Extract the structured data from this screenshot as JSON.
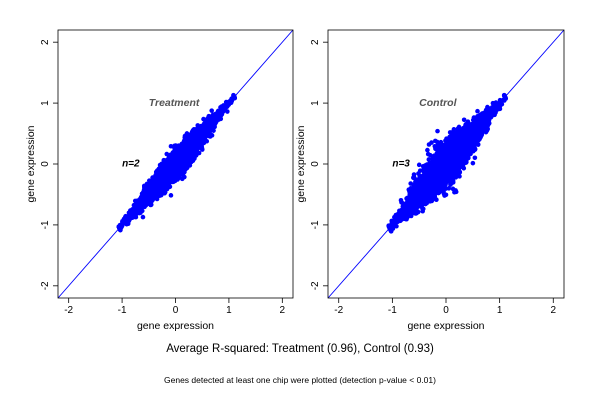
{
  "chart_data": [
    {
      "type": "scatter",
      "title": "Treatment",
      "annotation": "n=2",
      "xlabel": "gene expression",
      "ylabel": "gene expression",
      "xlim": [
        -2.2,
        2.2
      ],
      "ylim": [
        -2.2,
        2.2
      ],
      "xticks": [
        -2,
        -1,
        0,
        1,
        2
      ],
      "yticks": [
        -2,
        -1,
        0,
        1,
        2
      ],
      "reference_line": {
        "slope": 1,
        "intercept": 0,
        "color": "#0000ff"
      },
      "point_color": "#0000ff",
      "cloud": {
        "x_range": [
          -1.05,
          1.1
        ],
        "center": [
          0.0,
          0.0
        ],
        "spread_along": 0.45,
        "spread_across": 0.09
      },
      "r_squared": 0.96,
      "grid": false
    },
    {
      "type": "scatter",
      "title": "Control",
      "annotation": "n=3",
      "xlabel": "gene expression",
      "ylabel": "gene expression",
      "xlim": [
        -2.2,
        2.2
      ],
      "ylim": [
        -2.2,
        2.2
      ],
      "xticks": [
        -2,
        -1,
        0,
        1,
        2
      ],
      "yticks": [
        -2,
        -1,
        0,
        1,
        2
      ],
      "reference_line": {
        "slope": 1,
        "intercept": 0,
        "color": "#0000ff"
      },
      "point_color": "#0000ff",
      "cloud": {
        "x_range": [
          -1.05,
          1.1
        ],
        "center": [
          0.0,
          0.0
        ],
        "spread_along": 0.45,
        "spread_across": 0.14
      },
      "r_squared": 0.93,
      "grid": false
    }
  ],
  "captions": {
    "main": "Average R-squared: Treatment (0.96), Control (0.93)",
    "note": "Genes detected at least one chip were plotted (detection p-value < 0.01)"
  }
}
